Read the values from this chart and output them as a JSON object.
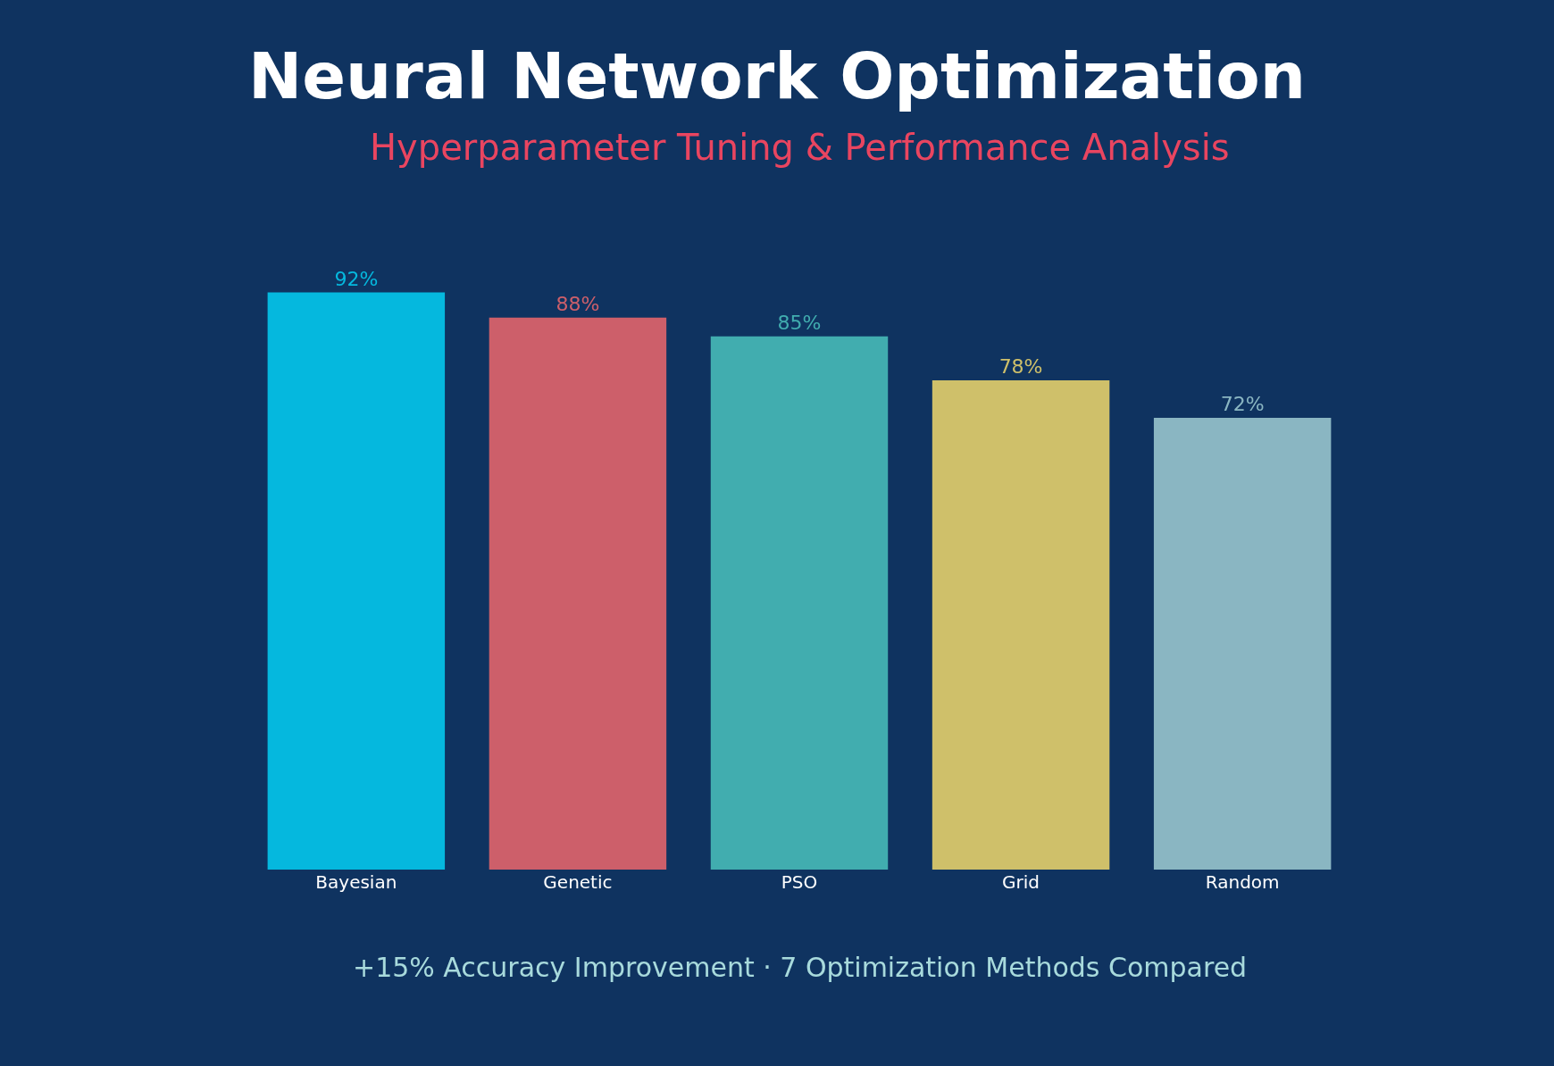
{
  "chart_data": {
    "type": "bar",
    "title": "Neural Network Optimization",
    "subtitle": "Hyperparameter Tuning & Performance Analysis",
    "categories": [
      "Bayesian",
      "Genetic",
      "PSO",
      "Grid",
      "Random"
    ],
    "values": [
      92,
      88,
      85,
      78,
      72
    ],
    "colors": [
      "#05b8de",
      "#cd5f6a",
      "#41adaf",
      "#cfc06a",
      "#8ab6c2"
    ],
    "value_labels": [
      "92%",
      "88%",
      "85%",
      "78%",
      "72%"
    ],
    "annotations": [
      "+15% Accuracy Improvement · 7 Optimization Methods Compared"
    ],
    "grid": false,
    "legend": false
  }
}
